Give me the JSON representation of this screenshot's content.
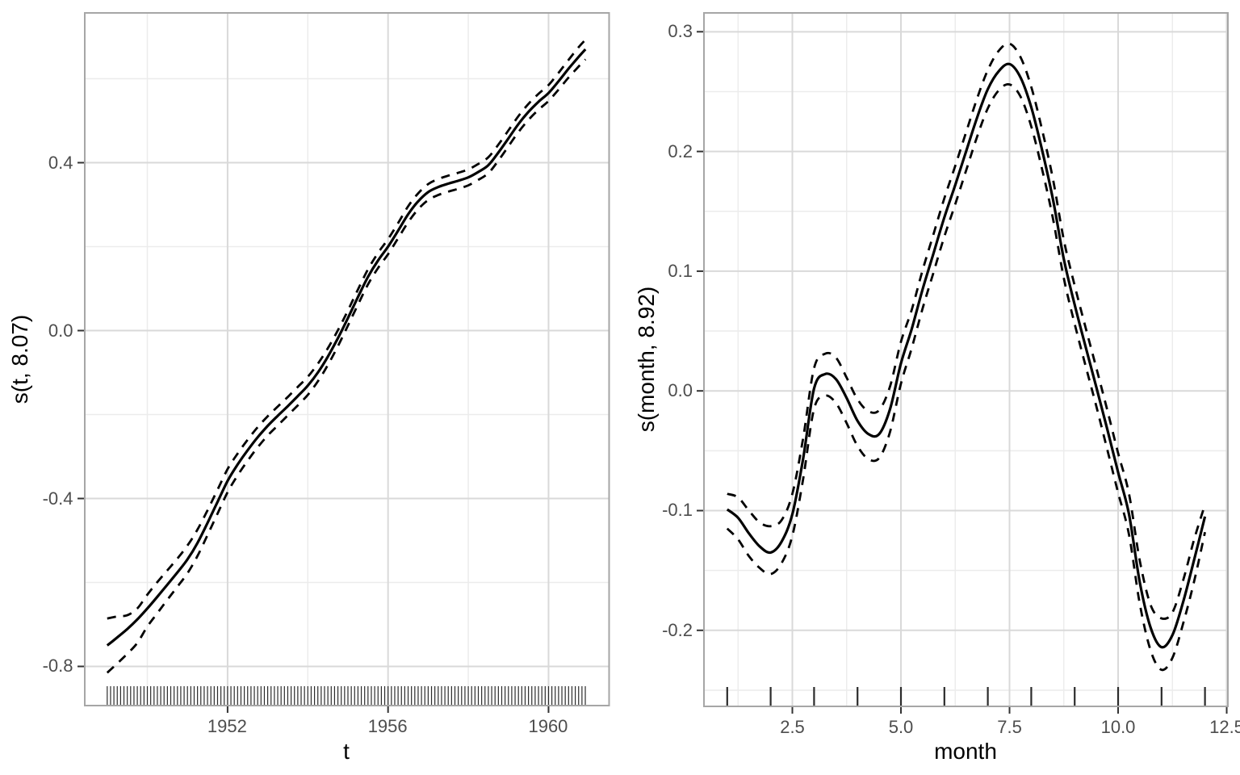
{
  "figure": {
    "kind": "GAM smooth terms, two panels side by side, ggplot theme_bw style"
  },
  "colors": {
    "background": "#FFFFFF",
    "panel_border": "#A6A6A6",
    "grid_major": "#D9D9D9",
    "grid_minor": "#ECECEC",
    "line": "#000000",
    "tick_mark": "#333333",
    "tick_label": "#4D4D4D",
    "axis_title": "#000000",
    "rug": "#2B2B2B"
  },
  "chart_data": [
    {
      "type": "line",
      "title": "",
      "xlabel": "t",
      "ylabel": "s(t, 8.07)",
      "edf": 8.07,
      "xlim": [
        1948.42,
        1961.53
      ],
      "ylim": [
        -0.8952,
        0.7587
      ],
      "grid": true,
      "legend": "none",
      "x_ticks": {
        "major": [
          1952,
          1956,
          1960
        ],
        "labels": [
          "1952",
          "1956",
          "1960"
        ],
        "minor": [
          1950,
          1954,
          1958
        ]
      },
      "y_ticks": {
        "major": [
          0.4,
          0.0,
          -0.4,
          -0.8
        ],
        "labels": [
          "0.4",
          "0.0",
          "-0.4",
          "-0.8"
        ],
        "minor": [
          0.6,
          0.2,
          -0.2,
          -0.6
        ]
      },
      "x": [
        1949,
        1949.25,
        1949.5,
        1949.75,
        1950,
        1950.25,
        1950.5,
        1950.75,
        1951,
        1951.25,
        1951.5,
        1951.75,
        1952,
        1952.25,
        1952.5,
        1952.75,
        1953,
        1953.25,
        1953.5,
        1953.75,
        1954,
        1954.25,
        1954.5,
        1954.75,
        1955,
        1955.25,
        1955.5,
        1955.75,
        1956,
        1956.25,
        1956.5,
        1956.75,
        1957,
        1957.25,
        1957.5,
        1957.75,
        1958,
        1958.25,
        1958.5,
        1958.75,
        1959,
        1959.25,
        1959.5,
        1959.75,
        1960,
        1960.25,
        1960.5,
        1960.75,
        1960.92
      ],
      "series": [
        {
          "name": "fit",
          "style": "solid",
          "values": [
            -0.75,
            -0.731,
            -0.711,
            -0.688,
            -0.662,
            -0.634,
            -0.605,
            -0.576,
            -0.545,
            -0.506,
            -0.458,
            -0.408,
            -0.358,
            -0.319,
            -0.285,
            -0.254,
            -0.227,
            -0.203,
            -0.18,
            -0.156,
            -0.131,
            -0.1,
            -0.062,
            -0.018,
            0.03,
            0.08,
            0.128,
            0.167,
            0.2,
            0.238,
            0.277,
            0.308,
            0.33,
            0.342,
            0.35,
            0.357,
            0.365,
            0.378,
            0.394,
            0.424,
            0.458,
            0.492,
            0.521,
            0.545,
            0.566,
            0.594,
            0.624,
            0.652,
            0.67
          ]
        },
        {
          "name": "lower-ci",
          "style": "dashed",
          "values": [
            -0.815,
            -0.793,
            -0.77,
            -0.744,
            -0.705,
            -0.673,
            -0.641,
            -0.61,
            -0.578,
            -0.537,
            -0.487,
            -0.436,
            -0.385,
            -0.345,
            -0.31,
            -0.278,
            -0.25,
            -0.226,
            -0.202,
            -0.178,
            -0.153,
            -0.121,
            -0.082,
            -0.037,
            0.012,
            0.062,
            0.11,
            0.149,
            0.182,
            0.22,
            0.258,
            0.289,
            0.311,
            0.323,
            0.331,
            0.338,
            0.346,
            0.359,
            0.375,
            0.405,
            0.439,
            0.473,
            0.502,
            0.526,
            0.547,
            0.574,
            0.603,
            0.629,
            0.646
          ]
        },
        {
          "name": "upper-ci",
          "style": "dashed",
          "values": [
            -0.686,
            -0.681,
            -0.678,
            -0.662,
            -0.629,
            -0.599,
            -0.571,
            -0.543,
            -0.512,
            -0.474,
            -0.428,
            -0.379,
            -0.33,
            -0.293,
            -0.26,
            -0.23,
            -0.204,
            -0.181,
            -0.158,
            -0.134,
            -0.11,
            -0.079,
            -0.042,
            0.001,
            0.048,
            0.098,
            0.146,
            0.185,
            0.218,
            0.256,
            0.296,
            0.327,
            0.349,
            0.361,
            0.369,
            0.376,
            0.384,
            0.397,
            0.413,
            0.443,
            0.477,
            0.511,
            0.54,
            0.564,
            0.585,
            0.614,
            0.645,
            0.675,
            0.693
          ]
        }
      ],
      "rug": {
        "type": "sequence",
        "from": 1949,
        "step": 0.0833333,
        "count": 144
      }
    },
    {
      "type": "line",
      "title": "",
      "xlabel": "month",
      "ylabel": "s(month, 8.92)",
      "edf": 8.92,
      "xlim": [
        0.446,
        12.546
      ],
      "ylim": [
        -0.2642,
        0.3164
      ],
      "grid": true,
      "legend": "none",
      "x_ticks": {
        "major": [
          2.5,
          5.0,
          7.5,
          10.0,
          12.5
        ],
        "labels": [
          "2.5",
          "5.0",
          "7.5",
          "10.0",
          "12.5"
        ],
        "minor": [
          1.25,
          3.75,
          6.25,
          8.75,
          11.25
        ]
      },
      "y_ticks": {
        "major": [
          0.3,
          0.2,
          0.1,
          0.0,
          -0.1,
          -0.2
        ],
        "labels": [
          "0.3",
          "0.2",
          "0.1",
          "0.0",
          "-0.1",
          "-0.2"
        ],
        "minor": [
          0.25,
          0.15,
          0.05,
          -0.05,
          -0.15,
          -0.25
        ]
      },
      "x": [
        1,
        1.25,
        1.5,
        1.75,
        2,
        2.25,
        2.5,
        2.75,
        3,
        3.25,
        3.5,
        3.75,
        4,
        4.25,
        4.5,
        4.75,
        5,
        5.25,
        5.5,
        5.75,
        6,
        6.25,
        6.5,
        6.75,
        7,
        7.25,
        7.5,
        7.75,
        8,
        8.25,
        8.5,
        8.75,
        9,
        9.25,
        9.5,
        9.75,
        10,
        10.25,
        10.5,
        10.75,
        11,
        11.25,
        11.5,
        11.75,
        12
      ],
      "series": [
        {
          "name": "fit",
          "style": "solid",
          "values": [
            -0.099,
            -0.106,
            -0.119,
            -0.13,
            -0.135,
            -0.126,
            -0.103,
            -0.056,
            0.002,
            0.014,
            0.01,
            -0.006,
            -0.025,
            -0.036,
            -0.036,
            -0.015,
            0.023,
            0.052,
            0.085,
            0.115,
            0.145,
            0.172,
            0.2,
            0.228,
            0.252,
            0.267,
            0.273,
            0.262,
            0.237,
            0.201,
            0.16,
            0.11,
            0.072,
            0.037,
            0.003,
            -0.032,
            -0.068,
            -0.103,
            -0.16,
            -0.198,
            -0.214,
            -0.204,
            -0.176,
            -0.141,
            -0.105
          ]
        },
        {
          "name": "lower-ci",
          "style": "dashed",
          "values": [
            -0.115,
            -0.124,
            -0.138,
            -0.148,
            -0.153,
            -0.144,
            -0.121,
            -0.073,
            -0.015,
            -0.004,
            -0.01,
            -0.027,
            -0.046,
            -0.057,
            -0.056,
            -0.034,
            0.006,
            0.036,
            0.069,
            0.099,
            0.129,
            0.156,
            0.184,
            0.212,
            0.236,
            0.251,
            0.256,
            0.246,
            0.221,
            0.185,
            0.144,
            0.094,
            0.056,
            0.021,
            -0.013,
            -0.049,
            -0.085,
            -0.12,
            -0.178,
            -0.217,
            -0.233,
            -0.223,
            -0.194,
            -0.159,
            -0.118
          ]
        },
        {
          "name": "upper-ci",
          "style": "dashed",
          "values": [
            -0.086,
            -0.089,
            -0.1,
            -0.11,
            -0.113,
            -0.108,
            -0.086,
            -0.039,
            0.019,
            0.031,
            0.028,
            0.011,
            -0.007,
            -0.017,
            -0.016,
            0.004,
            0.041,
            0.068,
            0.101,
            0.131,
            0.161,
            0.188,
            0.216,
            0.244,
            0.268,
            0.284,
            0.29,
            0.279,
            0.254,
            0.218,
            0.177,
            0.126,
            0.088,
            0.053,
            0.019,
            -0.016,
            -0.052,
            -0.086,
            -0.142,
            -0.179,
            -0.19,
            -0.185,
            -0.158,
            -0.124,
            -0.095
          ]
        }
      ],
      "rug": {
        "type": "values",
        "values": [
          1,
          2,
          3,
          4,
          5,
          6,
          7,
          8,
          9,
          10,
          11,
          12
        ]
      }
    }
  ]
}
